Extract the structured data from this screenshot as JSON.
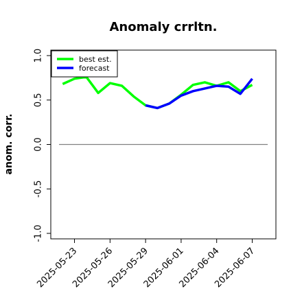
{
  "chart_data": {
    "type": "line",
    "title": "Anomaly crrltn.",
    "xlabel": "",
    "ylabel": "anom. corr.",
    "ylim": [
      -1.0,
      1.0
    ],
    "yticks": [
      -1.0,
      -0.5,
      0.0,
      0.5,
      1.0
    ],
    "xlim": [
      "2025-05-21",
      "2025-06-09"
    ],
    "xticks": [
      "2025-05-23",
      "2025-05-26",
      "2025-05-29",
      "2025-06-01",
      "2025-06-04",
      "2025-06-07"
    ],
    "highlight_tick": "2025-05-29",
    "highlight_color": "#228b22",
    "legend": {
      "placement": "top-left"
    },
    "reference_line": {
      "y": 0.0,
      "color": "#808080"
    },
    "series": [
      {
        "name": "best est.",
        "color": "#00ff00",
        "x": [
          "2025-05-22",
          "2025-05-23",
          "2025-05-24",
          "2025-05-25",
          "2025-05-26",
          "2025-05-27",
          "2025-05-28",
          "2025-05-29",
          "2025-05-30",
          "2025-05-31",
          "2025-06-01",
          "2025-06-02",
          "2025-06-03",
          "2025-06-04",
          "2025-06-05",
          "2025-06-06",
          "2025-06-07"
        ],
        "values": [
          0.68,
          0.74,
          0.76,
          0.58,
          0.69,
          0.66,
          0.54,
          0.44,
          0.41,
          0.46,
          0.56,
          0.67,
          0.7,
          0.66,
          0.7,
          0.6,
          0.67
        ]
      },
      {
        "name": "forecast",
        "color": "#0000ff",
        "x": [
          "2025-05-29",
          "2025-05-30",
          "2025-05-31",
          "2025-06-01",
          "2025-06-02",
          "2025-06-03",
          "2025-06-04",
          "2025-06-05",
          "2025-06-06",
          "2025-06-07"
        ],
        "values": [
          0.44,
          0.41,
          0.46,
          0.55,
          0.6,
          0.63,
          0.66,
          0.65,
          0.57,
          0.74
        ]
      }
    ]
  }
}
